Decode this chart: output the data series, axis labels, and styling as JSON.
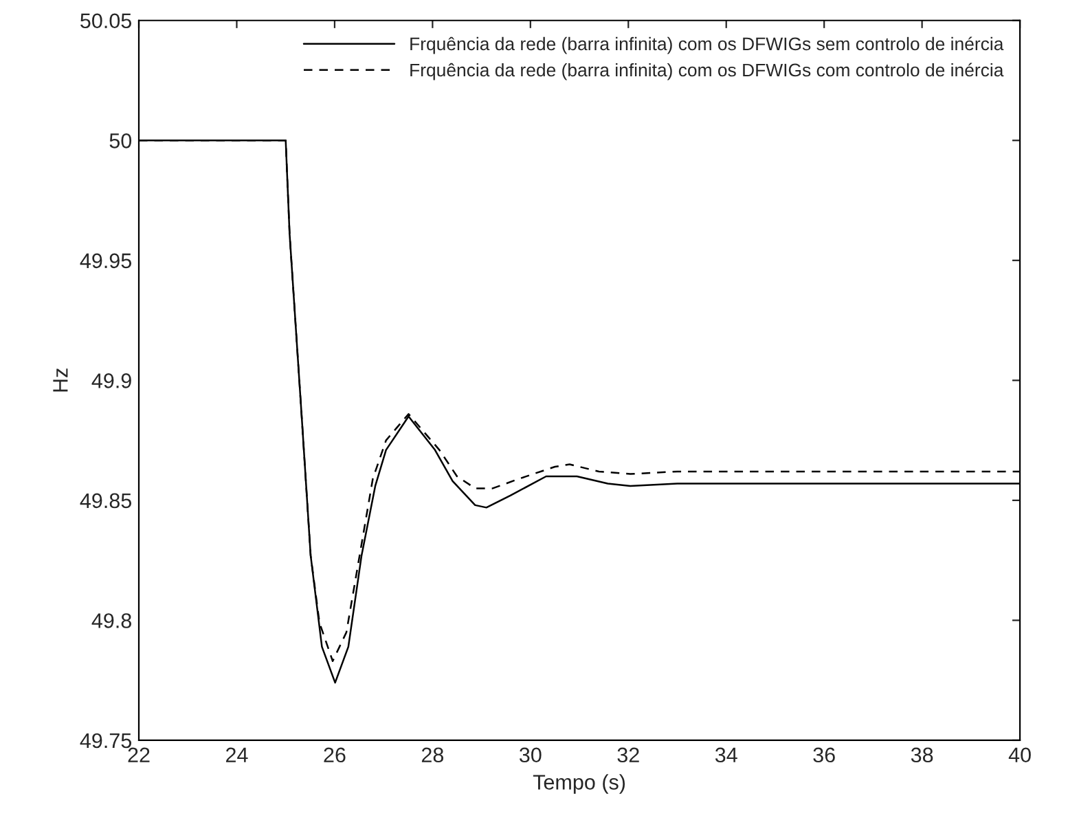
{
  "chart_data": {
    "type": "line",
    "xlabel": "Tempo (s)",
    "ylabel": "Hz",
    "xlim": [
      22,
      40
    ],
    "xticks": [
      22,
      24,
      26,
      28,
      30,
      32,
      34,
      36,
      38,
      40
    ],
    "ylim": [
      49.75,
      50.05
    ],
    "yticks": [
      49.75,
      49.8,
      49.85,
      49.9,
      49.95,
      50,
      50.05
    ],
    "grid": false,
    "legend": "top right",
    "marker": "none",
    "series": [
      {
        "name": "Frquência da rede (barra infinita) com os DFWIGs sem controlo de inércia",
        "color": "#000000",
        "line_style": "solid",
        "x": [
          22,
          25.0,
          25.08,
          25.33,
          25.51,
          25.74,
          26.01,
          26.28,
          26.55,
          26.83,
          27.05,
          27.51,
          28.05,
          28.41,
          28.87,
          29.1,
          29.59,
          30.32,
          30.95,
          31.58,
          32.04,
          33.0,
          40
        ],
        "values": [
          50.0,
          50.0,
          49.961,
          49.884,
          49.827,
          49.789,
          49.774,
          49.789,
          49.827,
          49.856,
          49.871,
          49.885,
          49.871,
          49.858,
          49.848,
          49.847,
          49.852,
          49.86,
          49.86,
          49.857,
          49.856,
          49.857,
          49.857
        ]
      },
      {
        "name": "Frquência da rede (barra infinita) com os DFWIGs com controlo de inércia",
        "color": "#000000",
        "line_style": "dashed",
        "x": [
          22,
          25.0,
          25.08,
          25.33,
          25.51,
          25.69,
          25.96,
          26.24,
          26.51,
          26.78,
          27.05,
          27.51,
          28.14,
          28.5,
          28.87,
          29.23,
          29.77,
          30.5,
          30.8,
          31.4,
          32.04,
          33.0,
          40
        ],
        "values": [
          50.0,
          50.0,
          49.961,
          49.884,
          49.827,
          49.799,
          49.783,
          49.795,
          49.827,
          49.859,
          49.875,
          49.886,
          49.871,
          49.86,
          49.855,
          49.855,
          49.859,
          49.864,
          49.865,
          49.862,
          49.861,
          49.862,
          49.862
        ]
      }
    ]
  }
}
